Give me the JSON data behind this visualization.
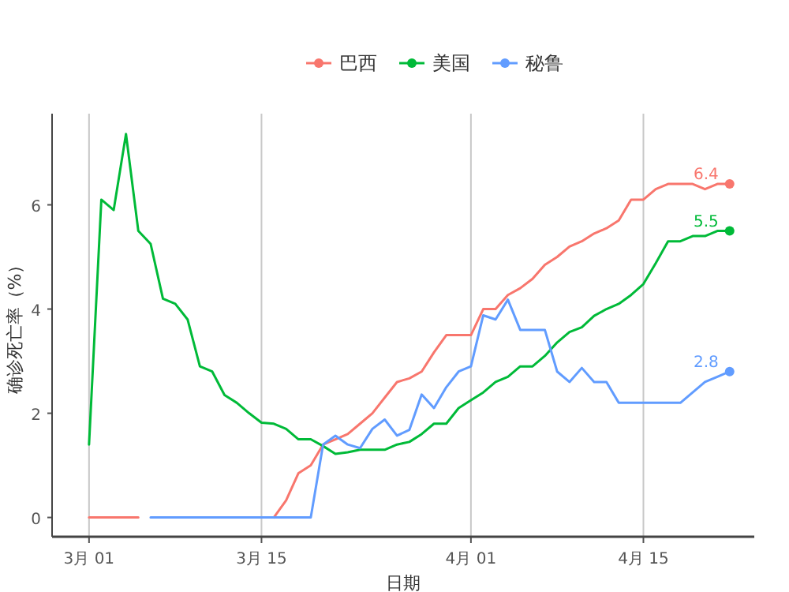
{
  "chart_data": {
    "type": "line",
    "xlabel": "日期",
    "ylabel": "确诊死亡率（%）",
    "x": [
      "--03-01",
      "--03-02",
      "--03-03",
      "--03-04",
      "--03-05",
      "--03-06",
      "--03-07",
      "--03-08",
      "--03-09",
      "--03-10",
      "--03-11",
      "--03-12",
      "--03-13",
      "--03-14",
      "--03-15",
      "--03-16",
      "--03-17",
      "--03-18",
      "--03-19",
      "--03-20",
      "--03-21",
      "--03-22",
      "--03-23",
      "--03-24",
      "--03-25",
      "--03-26",
      "--03-27",
      "--03-28",
      "--03-29",
      "--03-30",
      "--03-31",
      "--04-01",
      "--04-02",
      "--04-03",
      "--04-04",
      "--04-05",
      "--04-06",
      "--04-07",
      "--04-08",
      "--04-09",
      "--04-10",
      "--04-11",
      "--04-12",
      "--04-13",
      "--04-14",
      "--04-15",
      "--04-16",
      "--04-17",
      "--04-18",
      "--04-19",
      "--04-20",
      "--04-21",
      "--04-22"
    ],
    "series": [
      {
        "name": "巴西",
        "color": "#f8766d",
        "values": [
          0,
          0,
          0,
          0,
          0,
          null,
          null,
          null,
          null,
          null,
          null,
          null,
          null,
          null,
          null,
          0,
          0.33,
          0.85,
          1.0,
          1.4,
          1.5,
          1.6,
          1.8,
          2.0,
          2.3,
          2.6,
          2.67,
          2.8,
          3.17,
          3.5,
          3.5,
          3.5,
          4.0,
          4.0,
          4.27,
          4.4,
          4.58,
          4.85,
          5.0,
          5.2,
          5.3,
          5.45,
          5.55,
          5.7,
          6.1,
          6.1,
          6.3,
          6.4,
          6.4,
          6.4,
          6.3,
          6.4,
          6.4
        ]
      },
      {
        "name": "美国",
        "color": "#00ba38",
        "values": [
          1.4,
          6.1,
          5.9,
          7.36,
          5.5,
          5.25,
          4.2,
          4.1,
          3.8,
          2.9,
          2.8,
          2.35,
          2.2,
          2.0,
          1.82,
          1.8,
          1.7,
          1.5,
          1.5,
          1.37,
          1.22,
          1.25,
          1.3,
          1.3,
          1.3,
          1.4,
          1.45,
          1.6,
          1.8,
          1.8,
          2.1,
          2.25,
          2.4,
          2.6,
          2.7,
          2.9,
          2.9,
          3.1,
          3.36,
          3.56,
          3.65,
          3.87,
          4.0,
          4.1,
          4.27,
          4.48,
          4.88,
          5.3,
          5.3,
          5.4,
          5.4,
          5.5,
          5.5
        ]
      },
      {
        "name": "秘鲁",
        "color": "#619cff",
        "values": [
          null,
          null,
          null,
          null,
          null,
          0,
          0,
          0,
          0,
          0,
          0,
          0,
          0,
          0,
          0,
          0,
          0,
          0,
          0,
          1.4,
          1.57,
          1.4,
          1.33,
          1.7,
          1.88,
          1.57,
          1.68,
          2.36,
          2.1,
          2.5,
          2.8,
          2.9,
          3.88,
          3.8,
          4.18,
          3.6,
          3.6,
          3.6,
          2.8,
          2.6,
          2.87,
          2.6,
          2.6,
          2.2,
          2.2,
          2.2,
          2.2,
          2.2,
          2.2,
          2.4,
          2.6,
          2.7,
          2.8
        ]
      }
    ],
    "annotations": [
      {
        "text": "6.4",
        "x": "--04-22",
        "y": 6.4
      },
      {
        "text": "5.5",
        "x": "--04-22",
        "y": 5.5
      },
      {
        "text": "2.8",
        "x": "--04-22",
        "y": 2.8
      }
    ],
    "xlim": [
      "--02-26",
      "--04-24"
    ],
    "xticks": [
      {
        "value": "--03-01",
        "label": "3月 01"
      },
      {
        "value": "--03-15",
        "label": "3月 15"
      },
      {
        "value": "--04-01",
        "label": "4月 01"
      },
      {
        "value": "--04-15",
        "label": "4月 15"
      }
    ],
    "ylim": [
      -0.37,
      7.75
    ],
    "yticks": [
      0,
      2,
      4,
      6
    ],
    "grid": "x",
    "legend": "top",
    "marker": "none",
    "line_style": "solid"
  }
}
